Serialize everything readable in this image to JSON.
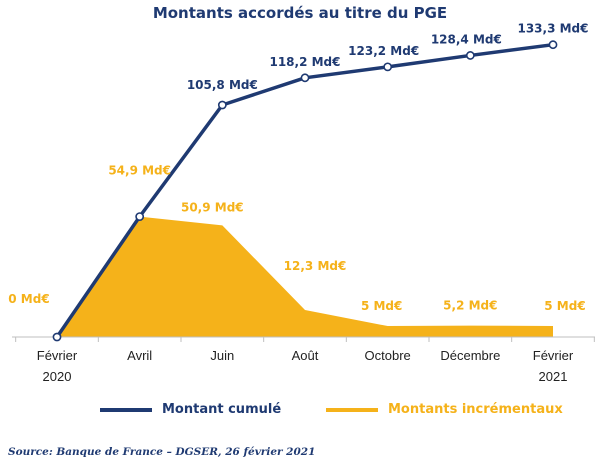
{
  "chart_data": {
    "type": "line",
    "title": "Montants accordés au titre du PGE",
    "categories": [
      "Février\n2020",
      "Avril",
      "Juin",
      "Août",
      "Octobre",
      "Décembre",
      "Février\n2021"
    ],
    "ylim": [
      0,
      140
    ],
    "grid": false,
    "legend_position": "bottom",
    "series": [
      {
        "name": "Montant cumulé",
        "chart": "line",
        "color": "#1f3a72",
        "values": [
          0,
          54.9,
          105.8,
          118.2,
          123.2,
          128.4,
          133.3
        ],
        "labels": [
          "",
          "",
          "105,8 Md€",
          "118,2 Md€",
          "123,2 Md€",
          "128,4 Md€",
          "133,3 Md€"
        ]
      },
      {
        "name": "Montants incrémentaux",
        "chart": "area",
        "color": "#f5b21a",
        "values": [
          0,
          54.9,
          50.9,
          12.3,
          5,
          5.2,
          5
        ],
        "labels": [
          "0 Md€",
          "54,9 Md€",
          "50,9  Md€",
          "12,3 Md€",
          "5 Md€",
          "5,2  Md€",
          "5 Md€"
        ]
      }
    ]
  },
  "source": "Source: Banque de France – DGSER, 26 février 2021"
}
